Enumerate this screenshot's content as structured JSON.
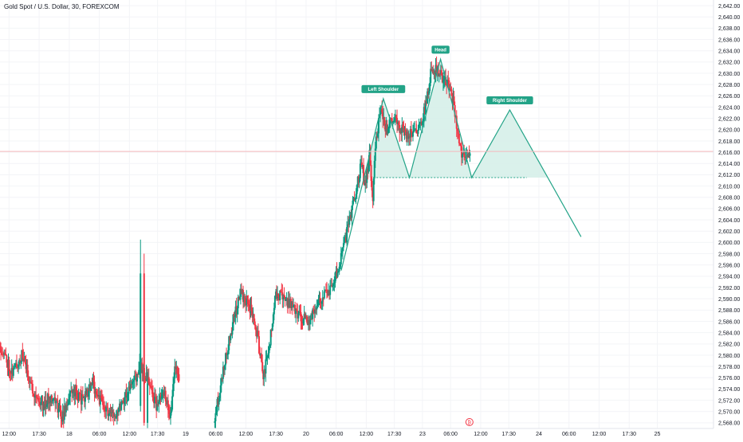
{
  "header": {
    "symbol_title": "Gold Spot / U.S. Dollar, 30, FOREXCOM"
  },
  "colors": {
    "up": "#089981",
    "down": "#f23645",
    "pattern": "#22a387",
    "pattern_fill": "#d6efe9",
    "price_line": "#f6b8bc",
    "price_label_bg": "#f23645",
    "axis_text": "#131722",
    "background": "#ffffff"
  },
  "chart_data": {
    "type": "candlestick",
    "y_axis": {
      "min": 2567,
      "max": 2643,
      "step": 2,
      "side": "right"
    },
    "x_ticks": [
      {
        "label": "12:00",
        "time": -1.0
      },
      {
        "label": "17:30",
        "time": 0.5
      },
      {
        "label": "18",
        "time": 2.0
      },
      {
        "label": "06:00",
        "time": 3.5
      },
      {
        "label": "12:00",
        "time": 5.0
      },
      {
        "label": "17:30",
        "time": 6.4
      },
      {
        "label": "19",
        "time": 7.8
      },
      {
        "label": "06:00",
        "time": 9.3
      },
      {
        "label": "12:00",
        "time": 10.8
      },
      {
        "label": "17:30",
        "time": 12.3
      },
      {
        "label": "20",
        "time": 13.8
      },
      {
        "label": "06:00",
        "time": 15.3
      },
      {
        "label": "12:00",
        "time": 16.8
      },
      {
        "label": "17:30",
        "time": 18.2
      },
      {
        "label": "23",
        "time": 19.6
      },
      {
        "label": "06:00",
        "time": 21.0
      },
      {
        "label": "12:00",
        "time": 22.5
      },
      {
        "label": "17:30",
        "time": 23.9
      },
      {
        "label": "24",
        "time": 25.4
      },
      {
        "label": "06:00",
        "time": 26.9
      },
      {
        "label": "12:00",
        "time": 28.4
      },
      {
        "label": "17:30",
        "time": 29.9
      },
      {
        "label": "25",
        "time": 31.3
      }
    ],
    "x_range": [
      -1.45,
      34.1
    ],
    "current_price": {
      "value": 2616.15,
      "label": "2,616.15",
      "countdown": "19:01"
    },
    "segments": [
      {
        "start": -1.45,
        "end": 7.5,
        "anchors": [
          [
            -1.45,
            2582
          ],
          [
            -0.8,
            2577
          ],
          [
            -0.3,
            2580
          ],
          [
            0.2,
            2574
          ],
          [
            0.7,
            2571
          ],
          [
            1.2,
            2573
          ],
          [
            1.7,
            2569
          ],
          [
            2.2,
            2574
          ],
          [
            2.7,
            2572
          ],
          [
            3.2,
            2575
          ],
          [
            3.7,
            2571
          ],
          [
            4.2,
            2569
          ],
          [
            4.7,
            2572
          ],
          [
            5.2,
            2575
          ],
          [
            5.6,
            2578
          ],
          [
            6.0,
            2575
          ],
          [
            6.4,
            2571
          ],
          [
            6.8,
            2573
          ],
          [
            7.1,
            2569
          ],
          [
            7.3,
            2579
          ],
          [
            7.5,
            2575
          ]
        ],
        "seed": 11
      },
      {
        "start": 9.25,
        "end": 19.3,
        "anchors": [
          [
            9.25,
            2568
          ],
          [
            9.7,
            2577
          ],
          [
            10.2,
            2586
          ],
          [
            10.6,
            2591
          ],
          [
            11.0,
            2589
          ],
          [
            11.4,
            2584
          ],
          [
            11.7,
            2576
          ],
          [
            12.0,
            2581
          ],
          [
            12.3,
            2591
          ],
          [
            12.7,
            2590
          ],
          [
            13.1,
            2589
          ],
          [
            13.5,
            2587
          ],
          [
            13.9,
            2586
          ],
          [
            14.3,
            2588
          ],
          [
            14.7,
            2591
          ],
          [
            15.1,
            2592
          ],
          [
            15.5,
            2596
          ],
          [
            15.9,
            2602
          ],
          [
            16.3,
            2609
          ],
          [
            16.6,
            2614
          ],
          [
            16.8,
            2610
          ],
          [
            17.0,
            2616
          ],
          [
            17.15,
            2607
          ],
          [
            17.3,
            2617
          ],
          [
            17.45,
            2621
          ],
          [
            17.6,
            2624
          ],
          [
            17.8,
            2620
          ],
          [
            18.2,
            2622
          ],
          [
            18.6,
            2620
          ],
          [
            19.0,
            2619
          ],
          [
            19.3,
            2620
          ]
        ],
        "seed": 23
      },
      {
        "start": 19.3,
        "end": 22.0,
        "anchors": [
          [
            19.3,
            2620
          ],
          [
            19.6,
            2621
          ],
          [
            19.9,
            2626
          ],
          [
            20.1,
            2631
          ],
          [
            20.5,
            2630
          ],
          [
            20.9,
            2628
          ],
          [
            21.2,
            2625
          ],
          [
            21.4,
            2619
          ],
          [
            21.6,
            2615
          ],
          [
            21.8,
            2616
          ],
          [
            22.0,
            2616
          ]
        ],
        "seed": 37
      }
    ],
    "special_candles": [
      {
        "t": 5.55,
        "o": 2571.0,
        "h": 2600.5,
        "l": 2570.0,
        "c": 2594.5
      },
      {
        "t": 5.73,
        "o": 2594.5,
        "h": 2598.0,
        "l": 2567.5,
        "c": 2568.0
      },
      {
        "t": 5.9,
        "o": 2568.0,
        "h": 2577.0,
        "l": 2567.0,
        "c": 2575.0
      }
    ],
    "pattern": {
      "name": "head-and-shoulders",
      "path": [
        {
          "t": 15.55,
          "p": 2595.0
        },
        {
          "t": 17.65,
          "p": 2625.5
        },
        {
          "t": 18.95,
          "p": 2611.5
        },
        {
          "t": 20.5,
          "p": 2632.5
        },
        {
          "t": 22.05,
          "p": 2611.5
        },
        {
          "t": 23.95,
          "p": 2623.5
        },
        {
          "t": 27.5,
          "p": 2601.0
        }
      ],
      "neckline": {
        "t_start": 17.15,
        "t_end": 24.8,
        "p": 2611.5
      },
      "labels": [
        {
          "text": "Left Shoulder",
          "t": 17.65,
          "p": 2625.5
        },
        {
          "text": "Head",
          "t": 20.5,
          "p": 2632.5
        },
        {
          "text": "Right Shoulder",
          "t": 23.95,
          "p": 2623.5
        }
      ]
    },
    "event_marker": {
      "t": 21.94,
      "glyph": "₿"
    }
  }
}
